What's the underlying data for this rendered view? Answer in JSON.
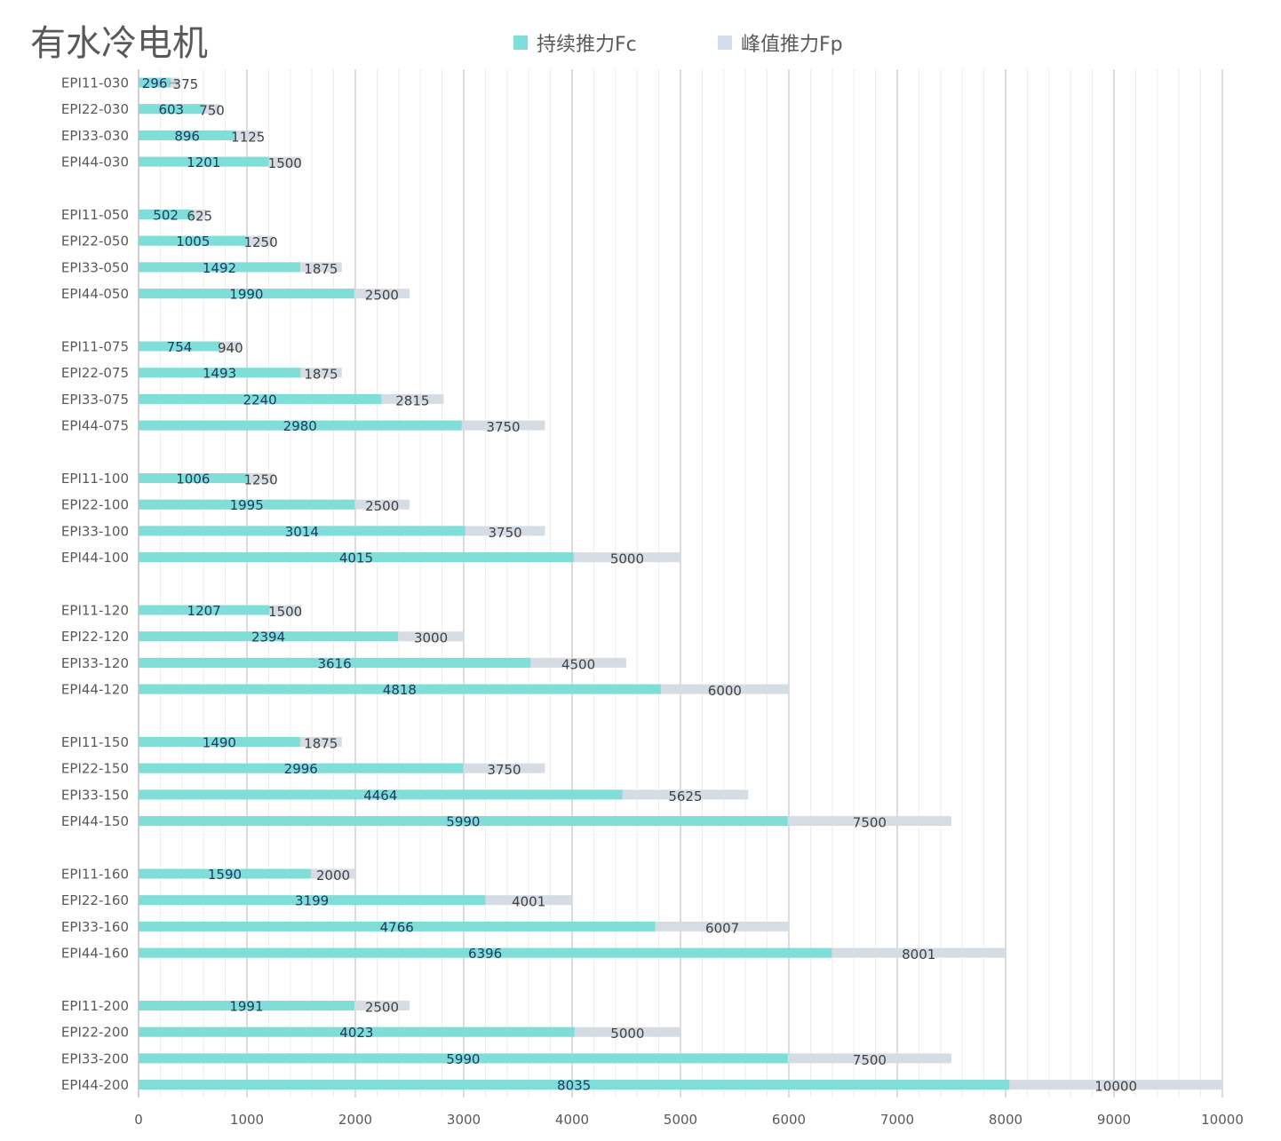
{
  "colors": {
    "fc": "#7FDED8",
    "fp": "#D6DCE4",
    "grid_major": "#D0D0D0",
    "grid_minor": "#EDEDED",
    "axis_text": "#595959",
    "label_fc": "#1F3864",
    "label_fp": "#404040"
  },
  "chart_data": {
    "type": "bar",
    "orientation": "horizontal",
    "title": "有水冷电机",
    "xlim": [
      0,
      10000
    ],
    "x_ticks": [
      "0",
      "1000",
      "2000",
      "3000",
      "4000",
      "5000",
      "6000",
      "7000",
      "8000",
      "9000",
      "10000"
    ],
    "grid": true,
    "legend_position": "top",
    "groups": [
      {
        "categories": [
          "EPI11-030",
          "EPI22-030",
          "EPI33-030",
          "EPI44-030"
        ]
      },
      {
        "categories": [
          "EPI11-050",
          "EPI22-050",
          "EPI33-050",
          "EPI44-050"
        ]
      },
      {
        "categories": [
          "EPI11-075",
          "EPI22-075",
          "EPI33-075",
          "EPI44-075"
        ]
      },
      {
        "categories": [
          "EPI11-100",
          "EPI22-100",
          "EPI33-100",
          "EPI44-100"
        ]
      },
      {
        "categories": [
          "EPI11-120",
          "EPI22-120",
          "EPI33-120",
          "EPI44-120"
        ]
      },
      {
        "categories": [
          "EPI11-150",
          "EPI22-150",
          "EPI33-150",
          "EPI44-150"
        ]
      },
      {
        "categories": [
          "EPI11-160",
          "EPI22-160",
          "EPI33-160",
          "EPI44-160"
        ]
      },
      {
        "categories": [
          "EPI11-200",
          "EPI22-200",
          "EPI33-200",
          "EPI44-200"
        ]
      }
    ],
    "series": [
      {
        "name": "持续推力Fc",
        "values": [
          296,
          603,
          896,
          1201,
          502,
          1005,
          1492,
          1990,
          754,
          1493,
          2240,
          2980,
          1006,
          1995,
          3014,
          4015,
          1207,
          2394,
          3616,
          4818,
          1490,
          2996,
          4464,
          5990,
          1590,
          3199,
          4766,
          6396,
          1991,
          4023,
          5990,
          8035
        ]
      },
      {
        "name": "峰值推力Fp",
        "values": [
          375,
          750,
          1125,
          1500,
          625,
          1250,
          1875,
          2500,
          940,
          1875,
          2815,
          3750,
          1250,
          2500,
          3750,
          5000,
          1500,
          3000,
          4500,
          6000,
          1875,
          3750,
          5625,
          7500,
          2000,
          4001,
          6007,
          8001,
          2500,
          5000,
          7500,
          10000
        ]
      }
    ]
  }
}
